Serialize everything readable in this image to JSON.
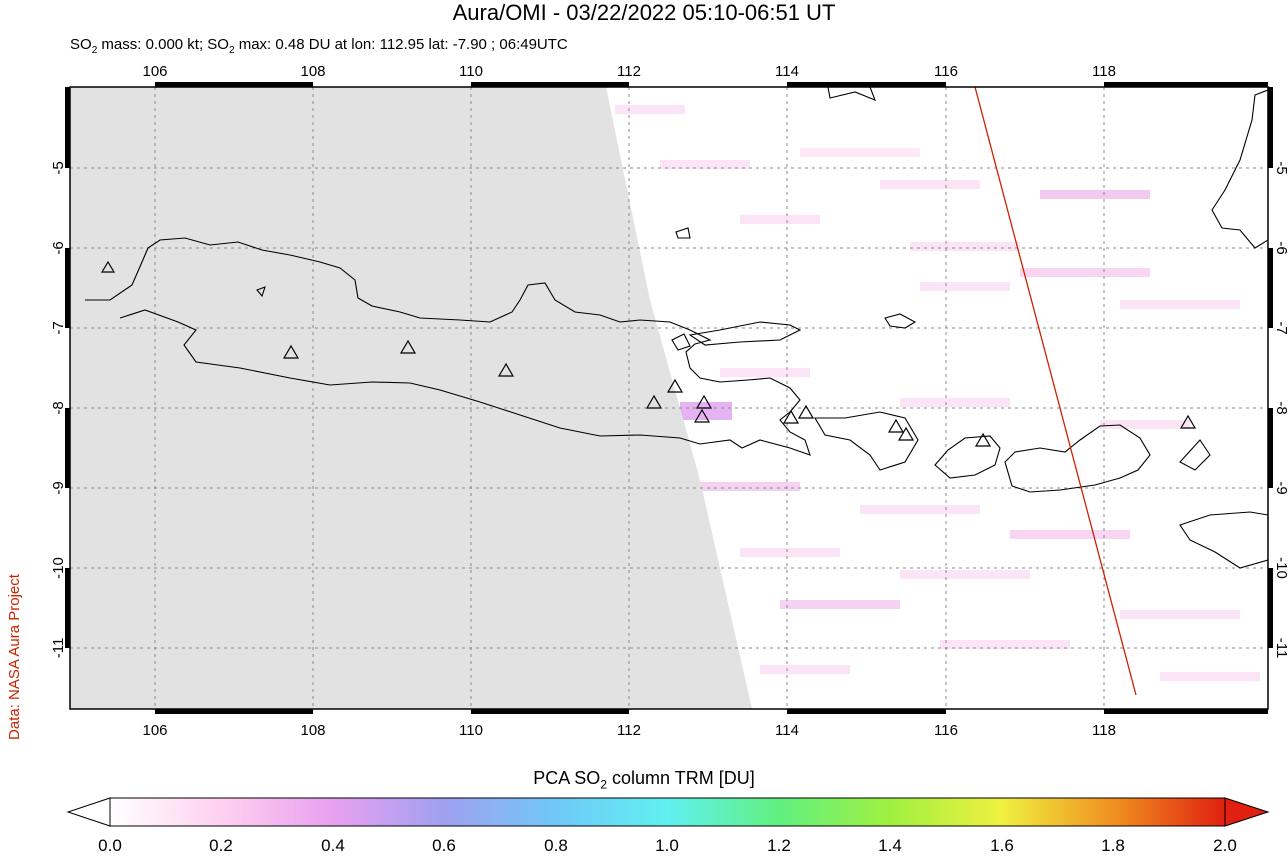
{
  "title": "Aura/OMI - 03/22/2022 05:10-06:51 UT",
  "subtitle": {
    "prefix": "SO",
    "sub": "2",
    "mid": " mass: 0.000 kt; SO",
    "sub2": "2",
    "suffix": " max: 0.48 DU at lon: 112.95 lat: -7.90 ; 06:49UTC"
  },
  "credit": "Data: NASA Aura Project",
  "map": {
    "lon_ticks": [
      "106",
      "108",
      "110",
      "112",
      "114",
      "116",
      "118"
    ],
    "lat_ticks": [
      "-5",
      "-6",
      "-7",
      "-8",
      "-9",
      "-10",
      "-11"
    ]
  },
  "colorbar": {
    "title_prefix": "PCA SO",
    "title_sub": "2",
    "title_suffix": " column TRM [DU]",
    "ticks": [
      "0.0",
      "0.2",
      "0.4",
      "0.6",
      "0.8",
      "1.0",
      "1.2",
      "1.4",
      "1.6",
      "1.8",
      "2.0"
    ],
    "colors": [
      "#ffffff",
      "#ffd0f0",
      "#e8a0f0",
      "#a0a0f0",
      "#70c8f8",
      "#60f0f0",
      "#60f080",
      "#a0f040",
      "#f0f040",
      "#f09020",
      "#e02010"
    ]
  },
  "colors": {
    "no_data": "#e2e2e2",
    "orbit_line": "#cc2200",
    "grid": "#888888"
  }
}
